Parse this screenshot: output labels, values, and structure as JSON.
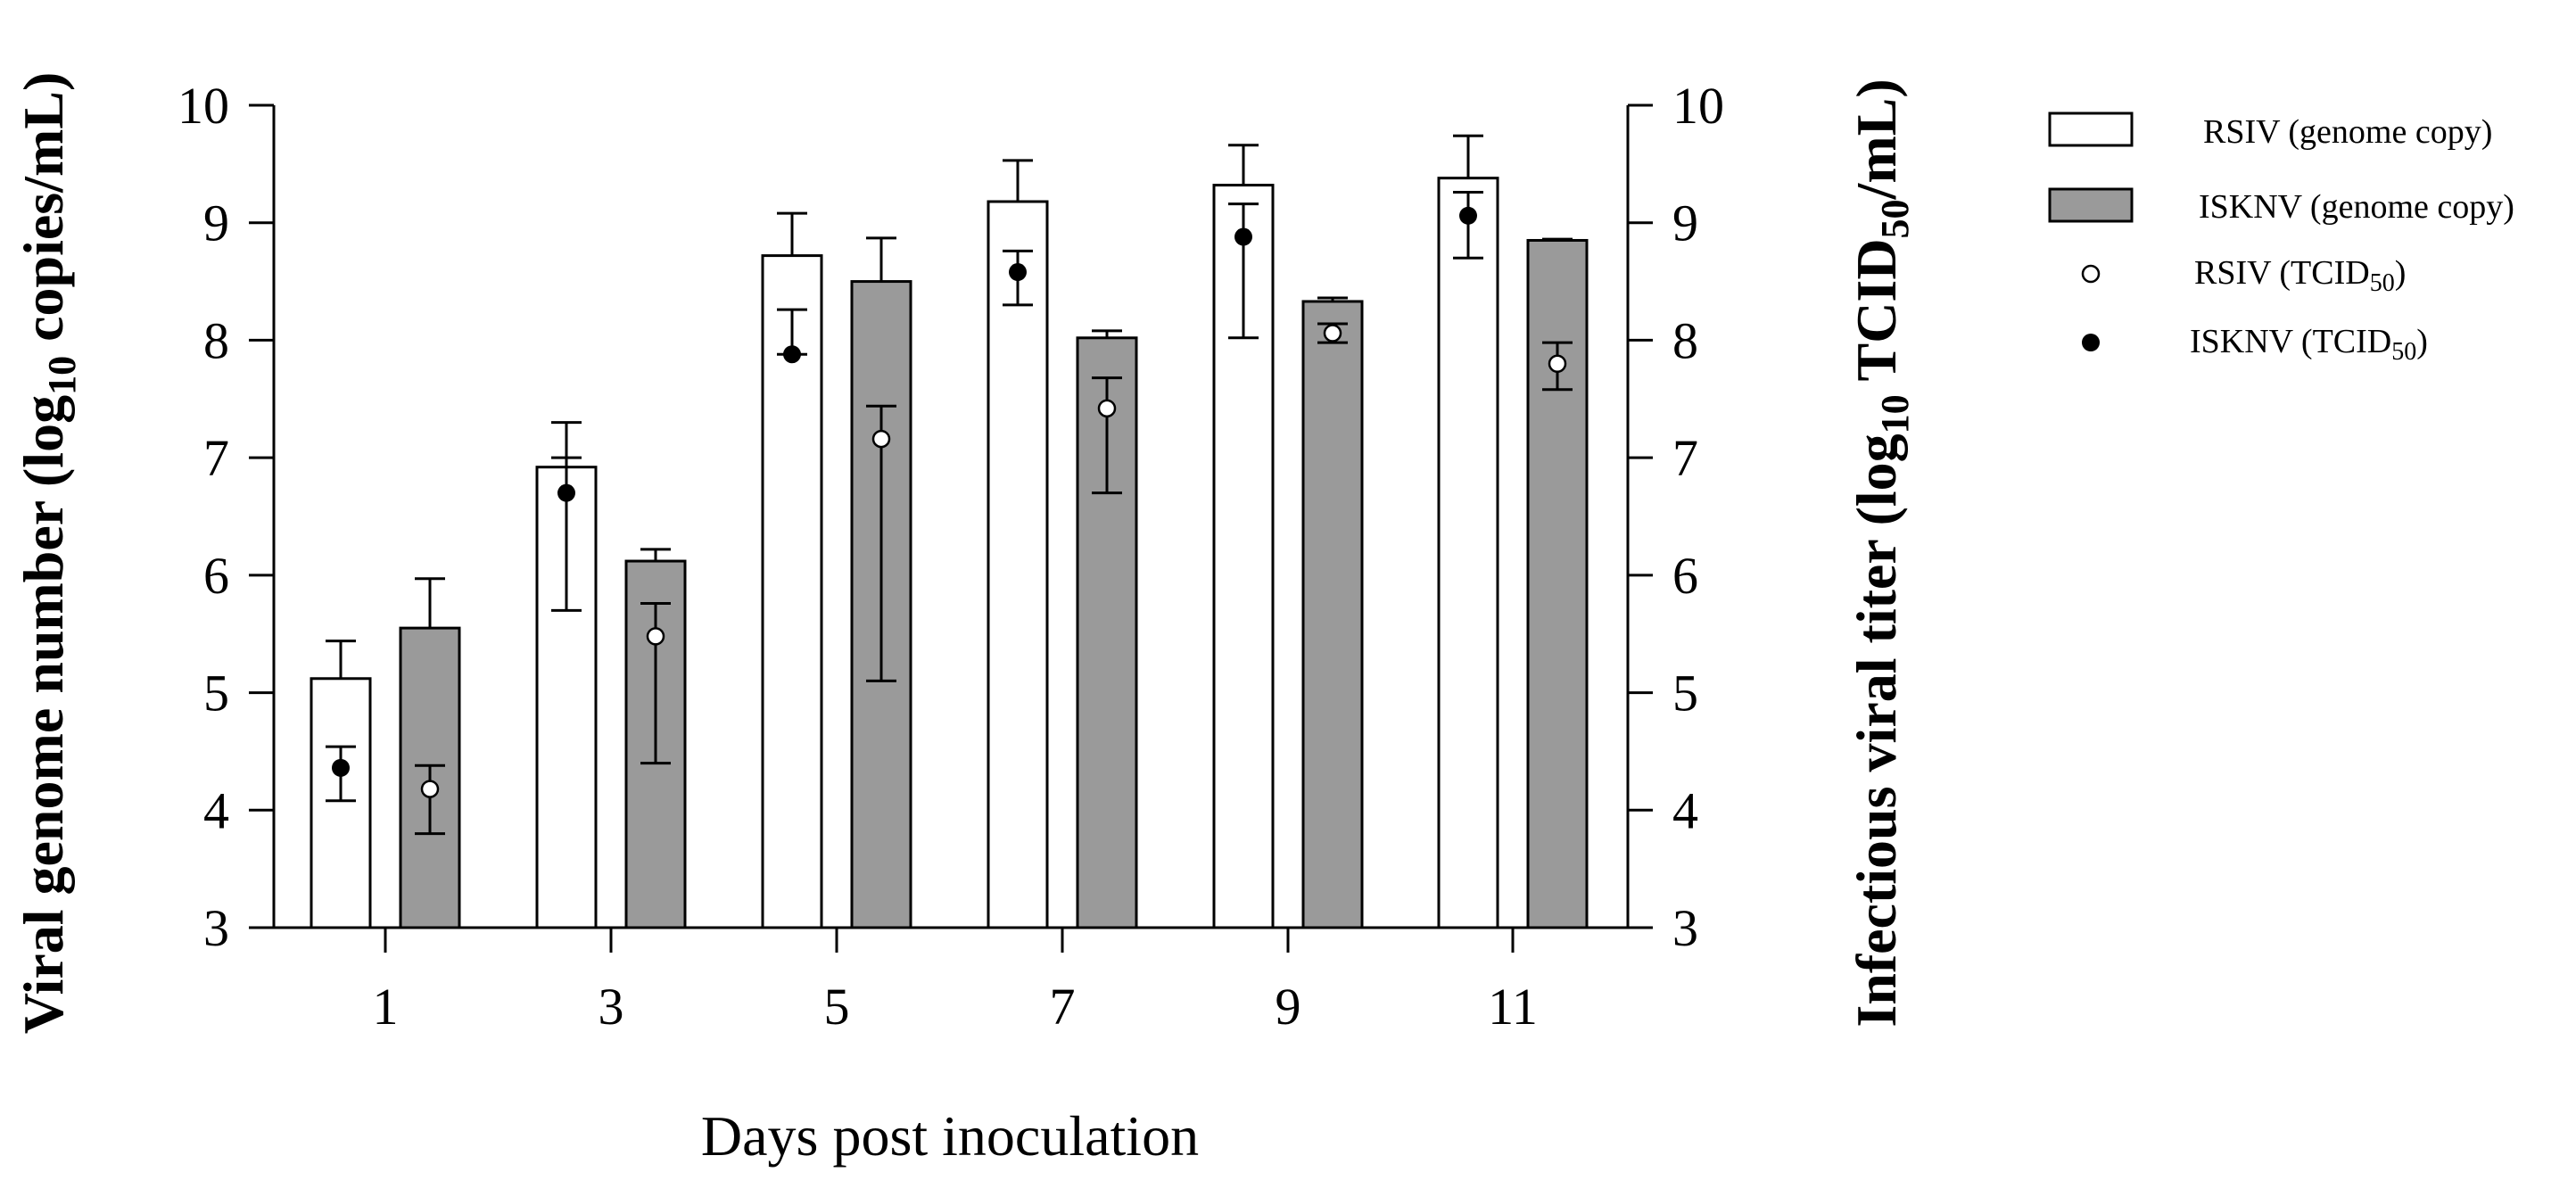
{
  "chart_data": {
    "type": "bar",
    "title": "",
    "xlabel": "Days post inoculation",
    "ylabel_left": {
      "main": "Viral genome number (log",
      "sub": "10",
      "tail": " copies/mL)"
    },
    "ylabel_right": {
      "main": "Infectious viral titer (log",
      "sub": "10",
      "mid": " TCID",
      "sub2": "50",
      "tail": "/mL)"
    },
    "categories": [
      "1",
      "3",
      "5",
      "7",
      "9",
      "11"
    ],
    "ylim": [
      3,
      10
    ],
    "yticks": [
      "3",
      "4",
      "5",
      "6",
      "7",
      "8",
      "9",
      "10"
    ],
    "y2lim": [
      3,
      10
    ],
    "y2ticks": [
      "3",
      "4",
      "5",
      "6",
      "7",
      "8",
      "9",
      "10"
    ],
    "series": [
      {
        "name": "RSIV (genome copy)",
        "kind": "bar",
        "color": "#ffffff",
        "values": [
          5.12,
          6.92,
          8.72,
          9.18,
          9.32,
          9.38
        ],
        "err": [
          0.32,
          0.38,
          0.36,
          0.35,
          0.34,
          0.36
        ]
      },
      {
        "name": "ISKNV (genome copy)",
        "kind": "bar",
        "color": "#9a9a9a",
        "values": [
          5.55,
          6.12,
          8.5,
          8.02,
          8.33,
          8.85
        ],
        "err": [
          0.42,
          0.1,
          0.37,
          0.06,
          0.03,
          0.01
        ]
      },
      {
        "name": "RSIV (TCID50)",
        "kind": "point",
        "marker": "open",
        "values": [
          4.18,
          5.48,
          7.16,
          7.42,
          8.06,
          7.8
        ],
        "err_low": [
          0.38,
          1.08,
          2.06,
          0.72,
          0.08,
          0.22
        ],
        "err_high": [
          0.2,
          0.28,
          0.28,
          0.26,
          0.08,
          0.18
        ]
      },
      {
        "name": "ISKNV (TCID50)",
        "kind": "point",
        "marker": "filled",
        "values": [
          4.36,
          6.7,
          7.88,
          8.58,
          8.88,
          9.06
        ],
        "err_low": [
          0.28,
          1.0,
          0.0,
          0.28,
          0.86,
          0.36
        ],
        "err_high": [
          0.18,
          0.3,
          0.38,
          0.18,
          0.28,
          0.2
        ]
      }
    ],
    "legend": {
      "position": "top-right",
      "entries": [
        {
          "main": "RSIV (genome copy)",
          "sub": ""
        },
        {
          "main": "ISKNV (genome copy)",
          "sub": ""
        },
        {
          "main": "RSIV (TCID",
          "sub": "50",
          "tail": ")"
        },
        {
          "main": "ISKNV (TCID",
          "sub": "50",
          "tail": ")"
        }
      ]
    },
    "grid": false
  }
}
